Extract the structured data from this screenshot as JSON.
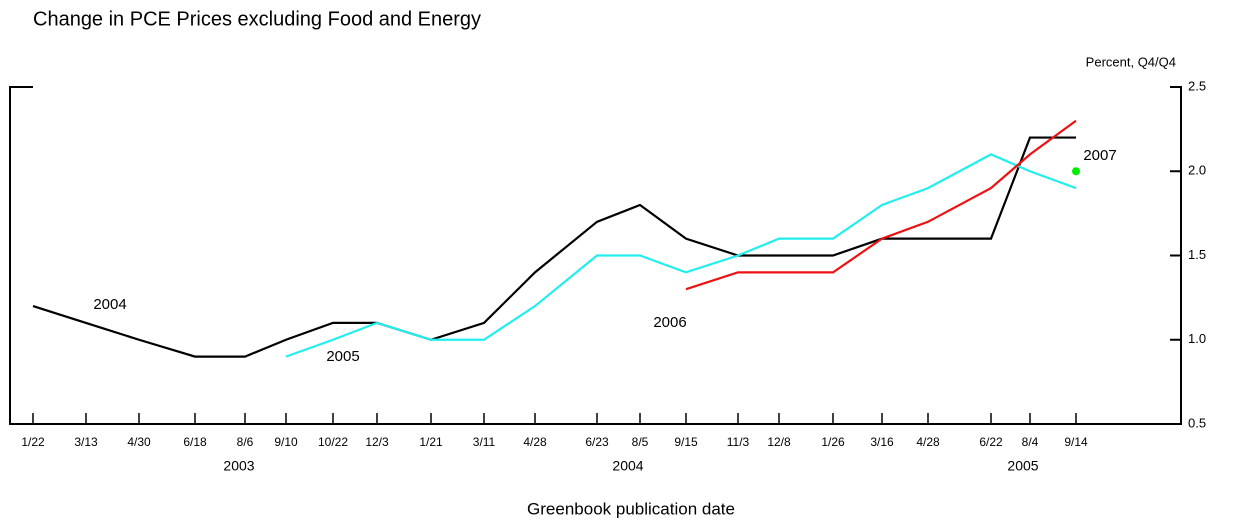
{
  "chart_data": {
    "type": "line",
    "title": "Change in PCE Prices excluding Food and Energy",
    "y_unit_label": "Percent, Q4/Q4",
    "xlabel": "Greenbook publication date",
    "categories": [
      "1/22",
      "3/13",
      "4/30",
      "6/18",
      "8/6",
      "9/10",
      "10/22",
      "12/3",
      "1/21",
      "3/11",
      "4/28",
      "6/23",
      "8/5",
      "9/15",
      "11/3",
      "12/8",
      "1/26",
      "3/16",
      "4/28",
      "6/22",
      "8/4",
      "9/14"
    ],
    "x_groups": [
      "2003",
      "2004",
      "2005"
    ],
    "ylim": [
      0.5,
      2.5
    ],
    "yticks": [
      0.5,
      {
        "value": 1,
        "label": "1.0"
      },
      1.5,
      {
        "value": 2,
        "label": "2.0"
      },
      2.5
    ],
    "series": [
      {
        "name": "2004",
        "color": "#000000",
        "values": [
          1.2,
          1.1,
          1.0,
          0.9,
          0.9,
          1.0,
          1.1,
          1.1,
          1.0,
          1.1,
          1.4,
          1.7,
          1.8,
          1.6,
          1.5,
          1.5,
          1.5,
          1.6,
          1.6,
          1.6,
          2.2,
          2.2
        ]
      },
      {
        "name": "2005",
        "color": "#22eeee",
        "values": [
          null,
          null,
          null,
          null,
          null,
          0.9,
          1.0,
          1.1,
          1.0,
          1.0,
          1.2,
          1.5,
          1.5,
          1.4,
          1.5,
          1.6,
          1.6,
          1.8,
          1.9,
          2.1,
          2.0,
          1.9
        ]
      },
      {
        "name": "2006",
        "color": "#ee1111",
        "values": [
          null,
          null,
          null,
          null,
          null,
          null,
          null,
          null,
          null,
          null,
          null,
          null,
          null,
          1.3,
          1.4,
          1.4,
          1.4,
          1.6,
          1.7,
          1.9,
          2.1,
          2.3
        ]
      },
      {
        "name": "2007",
        "color": "#00ee00",
        "values": [
          null,
          null,
          null,
          null,
          null,
          null,
          null,
          null,
          null,
          null,
          null,
          null,
          null,
          null,
          null,
          null,
          null,
          null,
          null,
          null,
          null,
          2.0
        ]
      }
    ]
  }
}
